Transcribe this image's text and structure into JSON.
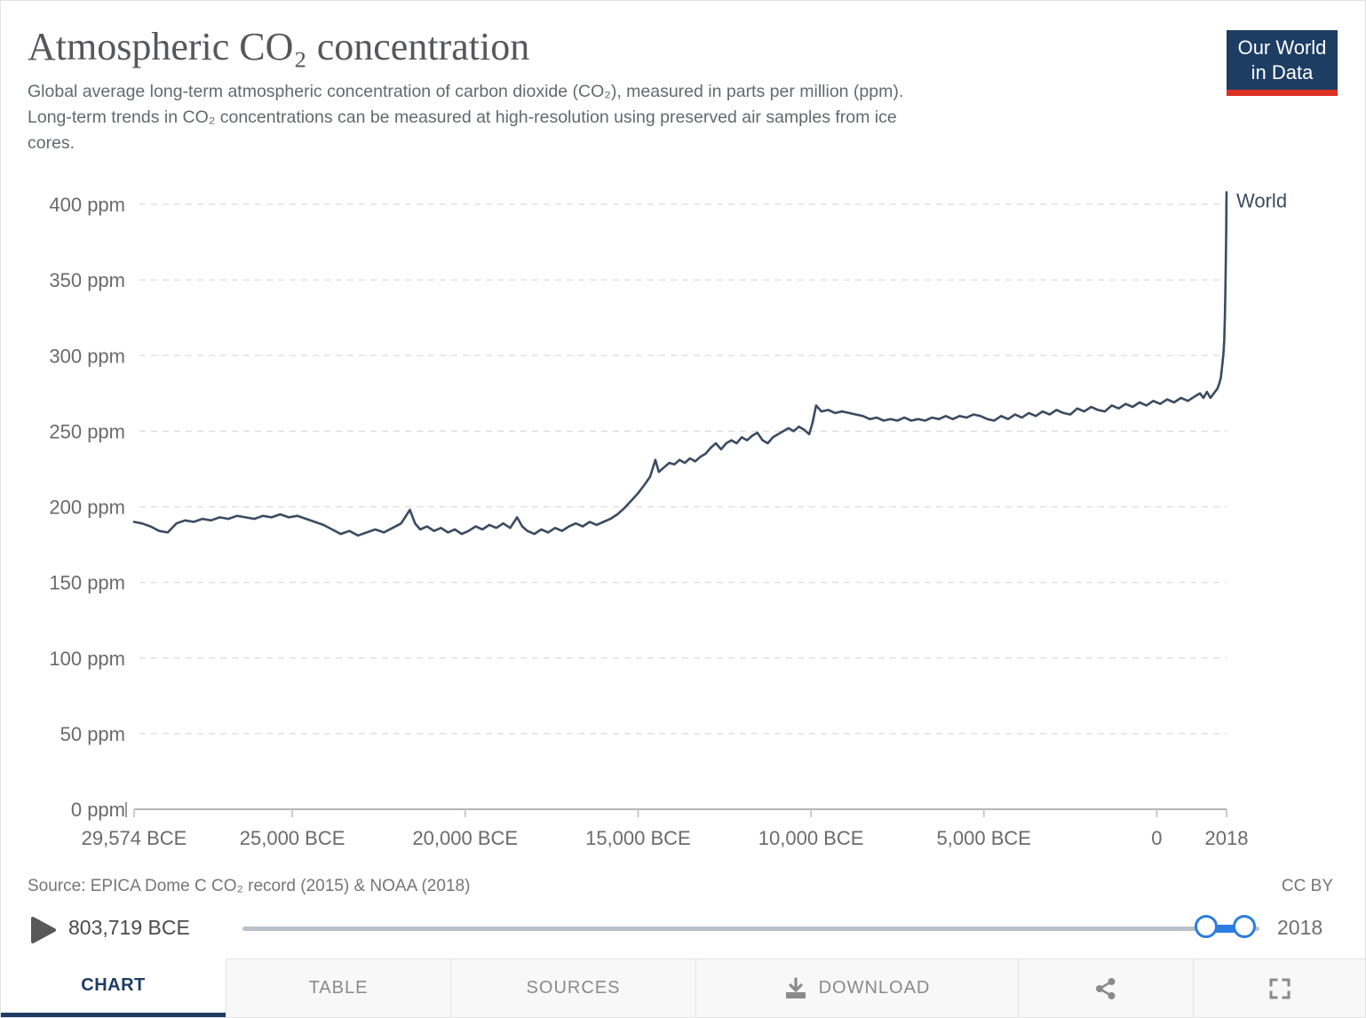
{
  "header": {
    "title": "Atmospheric CO₂ concentration",
    "subtitle_lines": [
      "Global average long-term atmospheric concentration of carbon dioxide (CO₂), measured in parts per million (ppm).",
      "Long-term trends in CO₂ concentrations can be measured at high-resolution using preserved air samples from ice",
      "cores."
    ],
    "logo": {
      "line1": "Our World",
      "line2": "in Data"
    }
  },
  "colors": {
    "navy": "#1d3d63",
    "logo_red": "#dc3022",
    "series_world": "#3a4b61",
    "slider_blue": "#2d7ce0",
    "slider_track": "#b9c0c9"
  },
  "chart_data": {
    "type": "line",
    "title": "Atmospheric CO₂ concentration",
    "xlabel": "",
    "ylabel": "",
    "y_unit": "ppm",
    "x_unit": "year (negative = BCE)",
    "xlim": [
      -29574,
      2018
    ],
    "ylim": [
      0,
      400
    ],
    "grid": "horizontal dashed",
    "legend_position": "end-of-line label",
    "y_ticks": [
      {
        "value": 0,
        "label": "0 ppm"
      },
      {
        "value": 50,
        "label": "50 ppm"
      },
      {
        "value": 100,
        "label": "100 ppm"
      },
      {
        "value": 150,
        "label": "150 ppm"
      },
      {
        "value": 200,
        "label": "200 ppm"
      },
      {
        "value": 250,
        "label": "250 ppm"
      },
      {
        "value": 300,
        "label": "300 ppm"
      },
      {
        "value": 350,
        "label": "350 ppm"
      },
      {
        "value": 400,
        "label": "400 ppm"
      }
    ],
    "x_ticks": [
      {
        "value": -29574,
        "label": "29,574 BCE"
      },
      {
        "value": -25000,
        "label": "25,000 BCE"
      },
      {
        "value": -20000,
        "label": "20,000 BCE"
      },
      {
        "value": -15000,
        "label": "15,000 BCE"
      },
      {
        "value": -10000,
        "label": "10,000 BCE"
      },
      {
        "value": -5000,
        "label": "5,000 BCE"
      },
      {
        "value": 0,
        "label": "0"
      },
      {
        "value": 2018,
        "label": "2018"
      }
    ],
    "series": [
      {
        "name": "World",
        "color": "#3a4b61",
        "points": [
          [
            -29574,
            190
          ],
          [
            -29350,
            189
          ],
          [
            -29100,
            187
          ],
          [
            -28850,
            184
          ],
          [
            -28600,
            183
          ],
          [
            -28350,
            189
          ],
          [
            -28100,
            191
          ],
          [
            -27850,
            190
          ],
          [
            -27600,
            192
          ],
          [
            -27350,
            191
          ],
          [
            -27100,
            193
          ],
          [
            -26850,
            192
          ],
          [
            -26600,
            194
          ],
          [
            -26350,
            193
          ],
          [
            -26100,
            192
          ],
          [
            -25850,
            194
          ],
          [
            -25600,
            193
          ],
          [
            -25350,
            195
          ],
          [
            -25100,
            193
          ],
          [
            -24850,
            194
          ],
          [
            -24600,
            192
          ],
          [
            -24350,
            190
          ],
          [
            -24100,
            188
          ],
          [
            -23850,
            185
          ],
          [
            -23600,
            182
          ],
          [
            -23350,
            184
          ],
          [
            -23100,
            181
          ],
          [
            -22850,
            183
          ],
          [
            -22600,
            185
          ],
          [
            -22350,
            183
          ],
          [
            -22100,
            186
          ],
          [
            -21850,
            189
          ],
          [
            -21600,
            198
          ],
          [
            -21450,
            189
          ],
          [
            -21300,
            185
          ],
          [
            -21100,
            187
          ],
          [
            -20900,
            184
          ],
          [
            -20700,
            186
          ],
          [
            -20500,
            183
          ],
          [
            -20300,
            185
          ],
          [
            -20100,
            182
          ],
          [
            -19900,
            184
          ],
          [
            -19700,
            187
          ],
          [
            -19500,
            185
          ],
          [
            -19300,
            188
          ],
          [
            -19100,
            186
          ],
          [
            -18900,
            189
          ],
          [
            -18700,
            186
          ],
          [
            -18500,
            193
          ],
          [
            -18350,
            187
          ],
          [
            -18200,
            184
          ],
          [
            -18000,
            182
          ],
          [
            -17800,
            185
          ],
          [
            -17600,
            183
          ],
          [
            -17400,
            186
          ],
          [
            -17200,
            184
          ],
          [
            -17000,
            187
          ],
          [
            -16800,
            189
          ],
          [
            -16600,
            187
          ],
          [
            -16400,
            190
          ],
          [
            -16200,
            188
          ],
          [
            -16000,
            190
          ],
          [
            -15800,
            192
          ],
          [
            -15600,
            195
          ],
          [
            -15400,
            199
          ],
          [
            -15200,
            204
          ],
          [
            -15000,
            209
          ],
          [
            -14800,
            215
          ],
          [
            -14650,
            220
          ],
          [
            -14500,
            231
          ],
          [
            -14400,
            223
          ],
          [
            -14250,
            226
          ],
          [
            -14100,
            229
          ],
          [
            -13950,
            228
          ],
          [
            -13800,
            231
          ],
          [
            -13650,
            229
          ],
          [
            -13500,
            232
          ],
          [
            -13350,
            230
          ],
          [
            -13200,
            233
          ],
          [
            -13050,
            235
          ],
          [
            -12900,
            239
          ],
          [
            -12750,
            242
          ],
          [
            -12600,
            238
          ],
          [
            -12450,
            242
          ],
          [
            -12300,
            244
          ],
          [
            -12150,
            242
          ],
          [
            -12000,
            246
          ],
          [
            -11850,
            244
          ],
          [
            -11700,
            247
          ],
          [
            -11550,
            249
          ],
          [
            -11400,
            244
          ],
          [
            -11250,
            242
          ],
          [
            -11100,
            246
          ],
          [
            -10950,
            248
          ],
          [
            -10800,
            250
          ],
          [
            -10650,
            252
          ],
          [
            -10500,
            250
          ],
          [
            -10350,
            253
          ],
          [
            -10200,
            251
          ],
          [
            -10050,
            248
          ],
          [
            -9950,
            256
          ],
          [
            -9850,
            267
          ],
          [
            -9700,
            263
          ],
          [
            -9500,
            264
          ],
          [
            -9300,
            262
          ],
          [
            -9100,
            263
          ],
          [
            -8900,
            262
          ],
          [
            -8700,
            261
          ],
          [
            -8500,
            260
          ],
          [
            -8300,
            258
          ],
          [
            -8100,
            259
          ],
          [
            -7900,
            257
          ],
          [
            -7700,
            258
          ],
          [
            -7500,
            257
          ],
          [
            -7300,
            259
          ],
          [
            -7100,
            257
          ],
          [
            -6900,
            258
          ],
          [
            -6700,
            257
          ],
          [
            -6500,
            259
          ],
          [
            -6300,
            258
          ],
          [
            -6100,
            260
          ],
          [
            -5900,
            258
          ],
          [
            -5700,
            260
          ],
          [
            -5500,
            259
          ],
          [
            -5300,
            261
          ],
          [
            -5100,
            260
          ],
          [
            -4900,
            258
          ],
          [
            -4700,
            257
          ],
          [
            -4500,
            260
          ],
          [
            -4300,
            258
          ],
          [
            -4100,
            261
          ],
          [
            -3900,
            259
          ],
          [
            -3700,
            262
          ],
          [
            -3500,
            260
          ],
          [
            -3300,
            263
          ],
          [
            -3100,
            261
          ],
          [
            -2900,
            264
          ],
          [
            -2700,
            262
          ],
          [
            -2500,
            261
          ],
          [
            -2300,
            265
          ],
          [
            -2100,
            263
          ],
          [
            -1900,
            266
          ],
          [
            -1700,
            264
          ],
          [
            -1500,
            263
          ],
          [
            -1300,
            267
          ],
          [
            -1100,
            265
          ],
          [
            -900,
            268
          ],
          [
            -700,
            266
          ],
          [
            -500,
            269
          ],
          [
            -300,
            267
          ],
          [
            -100,
            270
          ],
          [
            100,
            268
          ],
          [
            300,
            271
          ],
          [
            500,
            269
          ],
          [
            700,
            272
          ],
          [
            900,
            270
          ],
          [
            1100,
            273
          ],
          [
            1250,
            275
          ],
          [
            1350,
            272
          ],
          [
            1450,
            276
          ],
          [
            1550,
            272
          ],
          [
            1650,
            275
          ],
          [
            1750,
            278
          ],
          [
            1800,
            281
          ],
          [
            1850,
            285
          ],
          [
            1900,
            295
          ],
          [
            1930,
            302
          ],
          [
            1950,
            310
          ],
          [
            1960,
            317
          ],
          [
            1970,
            325
          ],
          [
            1980,
            337
          ],
          [
            1990,
            352
          ],
          [
            2000,
            368
          ],
          [
            2005,
            377
          ],
          [
            2010,
            387
          ],
          [
            2014,
            397
          ],
          [
            2018,
            408
          ]
        ]
      }
    ]
  },
  "footer": {
    "source": "Source: EPICA Dome C CO₂ record (2015) & NOAA (2018)",
    "license": "CC BY"
  },
  "timeline": {
    "start_label": "803,719 BCE",
    "end_label": "2018"
  },
  "tabs": [
    {
      "label": "CHART",
      "active": true
    },
    {
      "label": "TABLE",
      "active": false
    },
    {
      "label": "SOURCES",
      "active": false
    },
    {
      "label": "DOWNLOAD",
      "active": false,
      "icon": "download-icon"
    },
    {
      "label": "",
      "active": false,
      "icon": "share-icon"
    },
    {
      "label": "",
      "active": false,
      "icon": "fullscreen-icon"
    }
  ]
}
